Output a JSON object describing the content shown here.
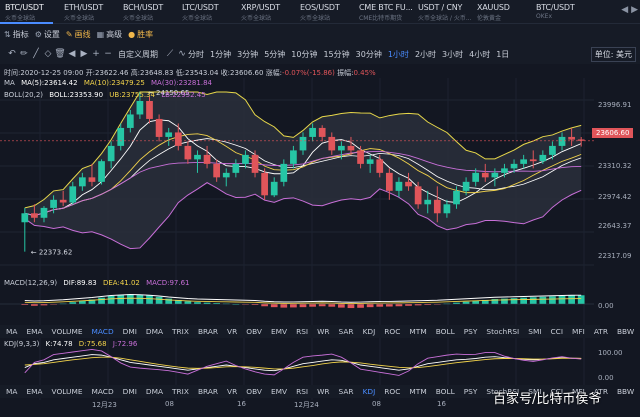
{
  "tabs": [
    {
      "symbol": "BTC/USDT",
      "source": "火币全球站",
      "active": true
    },
    {
      "symbol": "ETH/USDT",
      "source": "火币全球站",
      "active": false
    },
    {
      "symbol": "BCH/USDT",
      "source": "火币全球站",
      "active": false
    },
    {
      "symbol": "LTC/USDT",
      "source": "火币全球站",
      "active": false
    },
    {
      "symbol": "XRP/USDT",
      "source": "火币全球站",
      "active": false
    },
    {
      "symbol": "EOS/USDT",
      "source": "火币全球站",
      "active": false
    },
    {
      "symbol": "CME BTC FU...",
      "source": "CME比特币期货",
      "active": false
    },
    {
      "symbol": "USDT / CNY",
      "source": "火币全球站 / 火币...",
      "active": false
    },
    {
      "symbol": "XAUUSD",
      "source": "伦敦黄金",
      "active": false
    },
    {
      "symbol": "BTC/USDT",
      "source": "OKEx",
      "active": false
    }
  ],
  "toolbar": {
    "indicators": "指标",
    "settings": "设置",
    "brush": "画线",
    "advanced": "高级",
    "odds": "胜率"
  },
  "period_bar": {
    "custom_label": "自定义周期",
    "periods": [
      "分时",
      "1分钟",
      "3分钟",
      "5分钟",
      "10分钟",
      "15分钟",
      "30分钟",
      "1小时",
      "2小时",
      "3小时",
      "4小时",
      "1日"
    ],
    "active_period": "1小时",
    "currency": "单位: 美元"
  },
  "ohlc": {
    "time_label": "时间:",
    "time": "2020-12-25 09:00",
    "open_label": "开:",
    "open": "23622.46",
    "high_label": "高:",
    "high": "23648.83",
    "low_label": "低:",
    "low": "23543.04",
    "close_label": "收:",
    "close": "23606.60",
    "change_label": "涨幅:",
    "change": "-0.07%(-15.86)",
    "amplitude_label": "振幅:",
    "amplitude": "0.45%"
  },
  "legends": {
    "ma": {
      "name": "MA",
      "ma5": "MA(5):23614.42",
      "ma10": "MA(10):23479.25",
      "ma30": "MA(30):23281.84"
    },
    "boll": {
      "name": "BOLL(20,2)",
      "boll": "BOLL:23353.90",
      "ub": "UB:23755.34",
      "lb": "LB:22952.45"
    },
    "macd": {
      "name": "MACD(12,26,9)",
      "dif": "DIF:89.83",
      "dea": "DEA:41.02",
      "macd": "MACD:97.61"
    },
    "kdj": {
      "name": "KDJ(9,3,3)",
      "k": "K:74.78",
      "d": "D:75.68",
      "j": "J:72.96"
    }
  },
  "chart_data": {
    "type": "candlestick",
    "price_axis": [
      "23996.91",
      "23606.60",
      "23310.32",
      "22974.42",
      "22643.37",
      "22317.09"
    ],
    "ylim": [
      22280,
      24150
    ],
    "markers": {
      "high": "24150.65",
      "low": "22373.62"
    },
    "time_labels": [
      "12月23",
      "08",
      "16",
      "12月24",
      "08",
      "16"
    ],
    "macd_axis": [
      "0.00"
    ],
    "kdj_axis": [
      "100.00",
      "0.00"
    ],
    "candles": [
      [
        22700,
        22860,
        22373,
        22800
      ],
      [
        22800,
        22900,
        22700,
        22750
      ],
      [
        22750,
        22880,
        22700,
        22860
      ],
      [
        22860,
        23000,
        22800,
        22950
      ],
      [
        22950,
        23050,
        22880,
        22920
      ],
      [
        22920,
        23150,
        22900,
        23100
      ],
      [
        23100,
        23250,
        23050,
        23200
      ],
      [
        23200,
        23350,
        23100,
        23150
      ],
      [
        23150,
        23400,
        23120,
        23380
      ],
      [
        23380,
        23600,
        23300,
        23550
      ],
      [
        23550,
        23800,
        23500,
        23750
      ],
      [
        23750,
        23950,
        23700,
        23900
      ],
      [
        23900,
        24150,
        23850,
        24050
      ],
      [
        24050,
        24100,
        23800,
        23850
      ],
      [
        23850,
        23900,
        23600,
        23650
      ],
      [
        23650,
        23750,
        23550,
        23700
      ],
      [
        23700,
        23800,
        23500,
        23550
      ],
      [
        23550,
        23600,
        23350,
        23400
      ],
      [
        23400,
        23500,
        23250,
        23450
      ],
      [
        23450,
        23550,
        23300,
        23350
      ],
      [
        23350,
        23400,
        23150,
        23200
      ],
      [
        23200,
        23300,
        23100,
        23250
      ],
      [
        23250,
        23400,
        23200,
        23350
      ],
      [
        23350,
        23500,
        23300,
        23450
      ],
      [
        23450,
        23500,
        23200,
        23250
      ],
      [
        23250,
        23300,
        22950,
        23000
      ],
      [
        23000,
        23200,
        22980,
        23150
      ],
      [
        23150,
        23400,
        23100,
        23350
      ],
      [
        23350,
        23550,
        23300,
        23500
      ],
      [
        23500,
        23700,
        23450,
        23650
      ],
      [
        23650,
        23800,
        23600,
        23750
      ],
      [
        23750,
        23780,
        23600,
        23650
      ],
      [
        23650,
        23700,
        23450,
        23500
      ],
      [
        23500,
        23600,
        23400,
        23550
      ],
      [
        23550,
        23650,
        23450,
        23500
      ],
      [
        23500,
        23550,
        23300,
        23350
      ],
      [
        23350,
        23450,
        23250,
        23400
      ],
      [
        23400,
        23450,
        23200,
        23250
      ],
      [
        23250,
        23300,
        22950,
        23050
      ],
      [
        23050,
        23200,
        22980,
        23150
      ],
      [
        23150,
        23250,
        23050,
        23100
      ],
      [
        23100,
        23150,
        22850,
        22900
      ],
      [
        22900,
        23050,
        22800,
        22950
      ],
      [
        22950,
        23100,
        22700,
        22800
      ],
      [
        22800,
        22950,
        22750,
        22900
      ],
      [
        22900,
        23100,
        22850,
        23050
      ],
      [
        23050,
        23200,
        23000,
        23150
      ],
      [
        23150,
        23300,
        23100,
        23250
      ],
      [
        23250,
        23350,
        23150,
        23200
      ],
      [
        23200,
        23300,
        23100,
        23250
      ],
      [
        23250,
        23350,
        23200,
        23300
      ],
      [
        23300,
        23400,
        23250,
        23350
      ],
      [
        23350,
        23450,
        23300,
        23400
      ],
      [
        23400,
        23500,
        23300,
        23380
      ],
      [
        23380,
        23500,
        23350,
        23450
      ],
      [
        23450,
        23600,
        23400,
        23550
      ],
      [
        23550,
        23700,
        23500,
        23650
      ],
      [
        23650,
        23750,
        23550,
        23620
      ],
      [
        23622,
        23649,
        23543,
        23607
      ]
    ],
    "macd_hist": [
      -10,
      -20,
      -15,
      -5,
      5,
      20,
      35,
      50,
      70,
      90,
      100,
      110,
      105,
      95,
      80,
      60,
      45,
      30,
      20,
      15,
      10,
      5,
      0,
      -5,
      -10,
      -25,
      -35,
      -40,
      -38,
      -35,
      -30,
      -25,
      -30,
      -40,
      -45,
      -42,
      -35,
      -30,
      -28,
      -25,
      -20,
      -15,
      -10,
      -5,
      5,
      15,
      25,
      35,
      45,
      55,
      60,
      65,
      70,
      75,
      80,
      85,
      90,
      95,
      97
    ],
    "kdj_k": [
      40,
      55,
      60,
      70,
      75,
      80,
      85,
      90,
      88,
      80,
      70,
      60,
      55,
      50,
      45,
      40,
      35,
      30,
      35,
      40,
      45,
      50,
      45,
      40,
      35,
      30,
      28,
      35,
      45,
      55,
      60,
      65,
      70,
      68,
      60,
      50,
      45,
      40,
      35,
      30,
      35,
      45,
      55,
      60,
      65,
      70,
      72,
      75,
      80,
      82,
      78,
      75,
      72,
      70,
      72,
      75,
      78,
      76,
      75
    ],
    "kdj_d": [
      50,
      52,
      55,
      60,
      65,
      70,
      74,
      78,
      80,
      80,
      76,
      70,
      64,
      58,
      52,
      47,
      42,
      38,
      37,
      38,
      40,
      43,
      44,
      43,
      41,
      38,
      35,
      35,
      38,
      43,
      48,
      54,
      59,
      62,
      61,
      58,
      53,
      49,
      45,
      41,
      39,
      40,
      44,
      49,
      54,
      59,
      63,
      67,
      71,
      74,
      75,
      75,
      74,
      73,
      73,
      74,
      76,
      76,
      75.68
    ],
    "kdj_j": [
      20,
      60,
      70,
      90,
      95,
      100,
      105,
      110,
      104,
      82,
      58,
      42,
      38,
      35,
      32,
      28,
      22,
      15,
      30,
      45,
      55,
      65,
      48,
      35,
      24,
      15,
      12,
      35,
      60,
      80,
      85,
      88,
      92,
      80,
      58,
      34,
      28,
      22,
      16,
      10,
      27,
      55,
      76,
      82,
      88,
      92,
      90,
      91,
      98,
      98,
      84,
      75,
      68,
      64,
      70,
      77,
      82,
      76,
      72.96
    ]
  },
  "indicator_tabs": {
    "items": [
      "MA",
      "EMA",
      "VOLUME",
      "MACD",
      "DMI",
      "DMA",
      "TRIX",
      "BRAR",
      "VR",
      "OBV",
      "EMV",
      "RSI",
      "WR",
      "SAR",
      "KDJ",
      "ROC",
      "MTM",
      "BOLL",
      "PSY",
      "StochRSI",
      "SMI",
      "CCI",
      "MFI",
      "ATR",
      "BBW"
    ],
    "active": "MACD"
  },
  "watermark": "百家号/比特币侯爷",
  "colors": {
    "up": "#26c6a5",
    "down": "#e0555a",
    "bg": "#131722",
    "accent": "#4a8cff",
    "highlight": "#f2b84b"
  }
}
